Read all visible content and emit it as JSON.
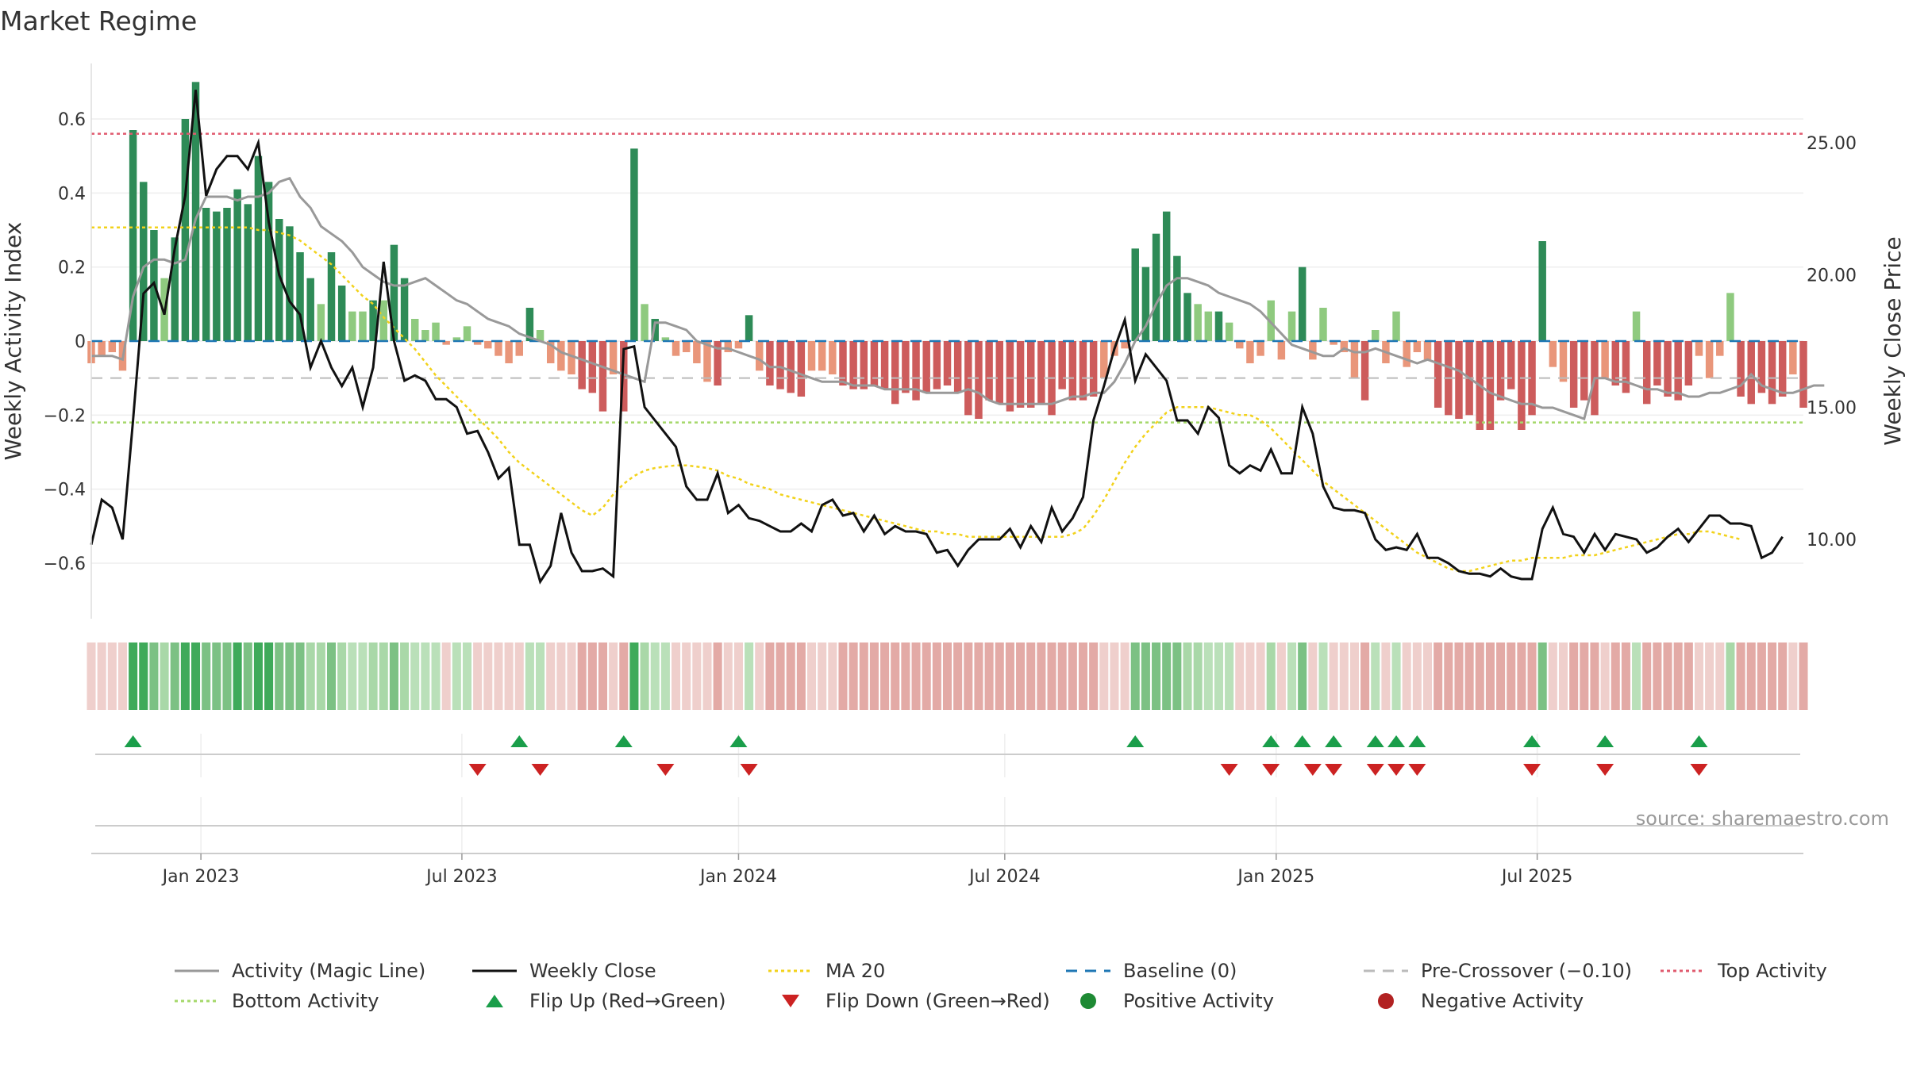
{
  "chart_data": {
    "type": "bar",
    "title": "Market Regime",
    "ylabel": "Weekly Activity Index",
    "y2label": "Weekly Close Price",
    "ylim": [
      -0.75,
      0.75
    ],
    "y2lim": [
      7.0,
      28.0
    ],
    "x_tick_labels": [
      "Jan 2023",
      "Jul 2023",
      "Jan 2024",
      "Jul 2024",
      "Jan 2025",
      "Jul 2025"
    ],
    "y_tick_labels": [
      "0.6",
      "0.4",
      "0.2",
      "0",
      "−0.2",
      "−0.4",
      "−0.6"
    ],
    "y_ticks": [
      0.6,
      0.4,
      0.2,
      0,
      -0.2,
      -0.4,
      -0.6
    ],
    "y2_tick_labels": [
      "25.00",
      "20.00",
      "15.00",
      "10.00"
    ],
    "y2_ticks": [
      25,
      20,
      15,
      10
    ],
    "reference_lines": {
      "top_activity": 0.56,
      "bottom_activity": -0.22,
      "pre_crossover": -0.1,
      "baseline": 0
    },
    "source": "source: sharemaestro.com",
    "grid": true,
    "legend_position": "bottom",
    "legend": [
      "Activity (Magic Line)",
      "Weekly Close",
      "MA 20",
      "Baseline (0)",
      "Pre-Crossover (−0.10)",
      "Top Activity",
      "Bottom Activity",
      "Flip Up (Red→Green)",
      "Flip Down (Green→Red)",
      "Positive Activity",
      "Negative Activity"
    ],
    "colors": {
      "pos_strong": "#2e8b57",
      "pos_light": "#8fca7f",
      "neg_strong": "#cd5c5c",
      "neg_light": "#e9967a",
      "close": "#111111",
      "magic": "#999999",
      "ma20": "#f2d21b",
      "baseline": "#1f77b4",
      "pre_crossover": "#bbbbbb",
      "top": "#e05a6e",
      "bottom": "#a5d86a",
      "flip_up": "#1a9e4a",
      "flip_down": "#cc2222"
    },
    "series": [
      {
        "name": "Activity (Magic Line)",
        "values": [
          -0.04,
          -0.04,
          -0.04,
          -0.05,
          0.12,
          0.2,
          0.22,
          0.22,
          0.21,
          0.22,
          0.33,
          0.39,
          0.39,
          0.39,
          0.38,
          0.39,
          0.39,
          0.4,
          0.43,
          0.44,
          0.39,
          0.36,
          0.31,
          0.29,
          0.27,
          0.24,
          0.2,
          0.18,
          0.16,
          0.15,
          0.15,
          0.16,
          0.17,
          0.15,
          0.13,
          0.11,
          0.1,
          0.08,
          0.06,
          0.05,
          0.04,
          0.02,
          0.01,
          0.0,
          -0.01,
          -0.03,
          -0.04,
          -0.05,
          -0.06,
          -0.07,
          -0.08,
          -0.09,
          -0.1,
          -0.11,
          0.05,
          0.05,
          0.04,
          0.03,
          0.0,
          -0.01,
          -0.02,
          -0.02,
          -0.03,
          -0.04,
          -0.05,
          -0.07,
          -0.07,
          -0.08,
          -0.09,
          -0.1,
          -0.11,
          -0.11,
          -0.11,
          -0.12,
          -0.12,
          -0.12,
          -0.13,
          -0.13,
          -0.13,
          -0.13,
          -0.14,
          -0.14,
          -0.14,
          -0.14,
          -0.13,
          -0.14,
          -0.16,
          -0.17,
          -0.17,
          -0.17,
          -0.17,
          -0.17,
          -0.17,
          -0.16,
          -0.15,
          -0.15,
          -0.14,
          -0.14,
          -0.11,
          -0.06,
          0.0,
          0.04,
          0.1,
          0.15,
          0.17,
          0.17,
          0.16,
          0.15,
          0.13,
          0.12,
          0.11,
          0.1,
          0.08,
          0.05,
          0.02,
          -0.01,
          -0.02,
          -0.03,
          -0.04,
          -0.04,
          -0.02,
          -0.03,
          -0.03,
          -0.02,
          -0.03,
          -0.04,
          -0.05,
          -0.06,
          -0.05,
          -0.06,
          -0.07,
          -0.08,
          -0.1,
          -0.12,
          -0.14,
          -0.15,
          -0.16,
          -0.17,
          -0.17,
          -0.18,
          -0.18,
          -0.19,
          -0.2,
          -0.21,
          -0.1,
          -0.1,
          -0.11,
          -0.11,
          -0.12,
          -0.13,
          -0.13,
          -0.14,
          -0.14,
          -0.15,
          -0.15,
          -0.14,
          -0.14,
          -0.13,
          -0.12,
          -0.09,
          -0.12,
          -0.13,
          -0.14,
          -0.14,
          -0.13,
          -0.12,
          -0.12
        ]
      },
      {
        "name": "Weekly Close",
        "values": [
          9.8,
          11.5,
          11.2,
          10.0,
          14.5,
          19.3,
          19.7,
          18.5,
          21.0,
          23.0,
          27.0,
          23.0,
          24.0,
          24.5,
          24.5,
          24.0,
          25.0,
          22.0,
          20.0,
          19.0,
          18.5,
          16.5,
          17.5,
          16.5,
          15.8,
          16.5,
          15.0,
          16.5,
          20.5,
          17.5,
          16.0,
          16.2,
          16.0,
          15.3,
          15.3,
          15.0,
          14.0,
          14.1,
          13.3,
          12.3,
          12.7,
          9.8,
          9.8,
          8.4,
          9.0,
          11.0,
          9.5,
          8.8,
          8.8,
          8.9,
          8.6,
          17.2,
          17.3,
          15.0,
          14.5,
          14.0,
          13.5,
          12.0,
          11.5,
          11.5,
          12.5,
          11.0,
          11.3,
          10.8,
          10.7,
          10.5,
          10.3,
          10.3,
          10.6,
          10.3,
          11.3,
          11.5,
          10.9,
          11.0,
          10.3,
          10.9,
          10.2,
          10.5,
          10.3,
          10.3,
          10.2,
          9.5,
          9.6,
          9.0,
          9.6,
          10.0,
          10.0,
          10.0,
          10.4,
          9.7,
          10.5,
          9.9,
          11.2,
          10.3,
          10.8,
          11.6,
          14.5,
          15.8,
          17.2,
          18.3,
          16.0,
          17.0,
          16.5,
          16.0,
          14.5,
          14.5,
          14.0,
          15.0,
          14.6,
          12.8,
          12.5,
          12.8,
          12.6,
          13.4,
          12.5,
          12.5,
          15.0,
          14.0,
          12.0,
          11.2,
          11.1,
          11.1,
          11.0,
          10.0,
          9.6,
          9.7,
          9.6,
          10.2,
          9.3,
          9.3,
          9.1,
          8.8,
          8.7,
          8.7,
          8.6,
          8.9,
          8.6,
          8.5,
          8.5,
          10.4,
          11.2,
          10.2,
          10.1,
          9.5,
          10.2,
          9.6,
          10.2,
          10.1,
          10.0,
          9.5,
          9.7,
          10.1,
          10.4,
          9.9,
          10.4,
          10.9,
          10.9,
          10.6,
          10.6,
          10.5,
          9.3,
          9.5,
          10.1
        ]
      },
      {
        "name": "MA 20",
        "values": [
          21.8,
          21.8,
          21.8,
          21.8,
          21.8,
          21.8,
          21.8,
          21.8,
          21.8,
          21.8,
          21.8,
          21.8,
          21.8,
          21.8,
          21.8,
          21.8,
          21.7,
          21.7,
          21.6,
          21.5,
          21.3,
          21.0,
          20.7,
          20.4,
          20.0,
          19.6,
          19.2,
          18.9,
          18.4,
          18.0,
          17.6,
          17.2,
          16.7,
          16.2,
          15.8,
          15.4,
          15.0,
          14.6,
          14.2,
          13.8,
          13.3,
          12.9,
          12.6,
          12.3,
          12.0,
          11.7,
          11.4,
          11.1,
          10.9,
          11.2,
          11.7,
          12.1,
          12.4,
          12.6,
          12.7,
          12.75,
          12.8,
          12.8,
          12.75,
          12.7,
          12.6,
          12.4,
          12.3,
          12.1,
          12.0,
          11.9,
          11.7,
          11.6,
          11.5,
          11.4,
          11.3,
          11.2,
          11.1,
          11.0,
          10.9,
          10.8,
          10.7,
          10.6,
          10.5,
          10.4,
          10.3,
          10.3,
          10.2,
          10.2,
          10.1,
          10.1,
          10.1,
          10.1,
          10.1,
          10.1,
          10.1,
          10.1,
          10.1,
          10.1,
          10.2,
          10.4,
          10.9,
          11.5,
          12.2,
          12.9,
          13.5,
          14.0,
          14.4,
          14.8,
          15.0,
          15.0,
          15.0,
          15.0,
          14.9,
          14.8,
          14.7,
          14.7,
          14.5,
          14.2,
          13.8,
          13.4,
          13.0,
          12.6,
          12.2,
          11.9,
          11.6,
          11.3,
          11.0,
          10.7,
          10.4,
          10.1,
          9.8,
          9.5,
          9.3,
          9.1,
          8.9,
          8.8,
          8.8,
          8.9,
          9.0,
          9.1,
          9.2,
          9.2,
          9.3,
          9.3,
          9.3,
          9.3,
          9.4,
          9.4,
          9.4,
          9.5,
          9.6,
          9.7,
          9.8,
          9.9,
          10.0,
          10.1,
          10.2,
          10.2,
          10.3,
          10.3,
          10.2,
          10.1,
          10.0
        ]
      },
      {
        "name": "Weekly Activity Index",
        "values": [
          -0.06,
          -0.04,
          -0.03,
          -0.08,
          0.57,
          0.43,
          0.3,
          0.17,
          0.28,
          0.6,
          0.7,
          0.36,
          0.35,
          0.36,
          0.41,
          0.37,
          0.5,
          0.43,
          0.33,
          0.31,
          0.24,
          0.17,
          0.1,
          0.24,
          0.15,
          0.08,
          0.08,
          0.11,
          0.11,
          0.26,
          0.17,
          0.06,
          0.03,
          0.05,
          -0.01,
          0.01,
          0.04,
          -0.01,
          -0.02,
          -0.04,
          -0.06,
          -0.04,
          0.09,
          0.03,
          -0.06,
          -0.08,
          -0.09,
          -0.13,
          -0.14,
          -0.19,
          -0.09,
          -0.19,
          0.52,
          0.1,
          0.06,
          0.01,
          -0.04,
          -0.03,
          -0.06,
          -0.11,
          -0.12,
          -0.03,
          -0.02,
          0.07,
          -0.08,
          -0.12,
          -0.13,
          -0.14,
          -0.15,
          -0.08,
          -0.08,
          -0.09,
          -0.12,
          -0.13,
          -0.13,
          -0.12,
          -0.13,
          -0.17,
          -0.14,
          -0.16,
          -0.14,
          -0.13,
          -0.12,
          -0.14,
          -0.2,
          -0.21,
          -0.16,
          -0.17,
          -0.19,
          -0.18,
          -0.18,
          -0.17,
          -0.2,
          -0.13,
          -0.16,
          -0.16,
          -0.15,
          -0.1,
          -0.04,
          -0.02,
          0.25,
          0.2,
          0.29,
          0.35,
          0.23,
          0.13,
          0.1,
          0.08,
          0.08,
          0.05,
          -0.02,
          -0.06,
          -0.04,
          0.11,
          -0.05,
          0.08,
          0.2,
          -0.05,
          0.09,
          -0.01,
          -0.03,
          -0.1,
          -0.16,
          0.03,
          -0.06,
          0.08,
          -0.07,
          -0.03,
          -0.05,
          -0.18,
          -0.2,
          -0.21,
          -0.2,
          -0.24,
          -0.24,
          -0.16,
          -0.13,
          -0.24,
          -0.2,
          0.27,
          -0.07,
          -0.11,
          -0.18,
          -0.16,
          -0.2,
          -0.1,
          -0.12,
          -0.14,
          0.08,
          -0.17,
          -0.12,
          -0.15,
          -0.16,
          -0.12,
          -0.04,
          -0.1,
          -0.04,
          0.13,
          -0.15,
          -0.17,
          -0.14,
          -0.17,
          -0.15,
          -0.09,
          -0.18
        ]
      }
    ],
    "flip_up_indices": [
      4,
      41,
      51,
      62,
      100,
      113,
      116,
      119,
      123,
      125,
      127,
      138,
      145,
      154
    ],
    "flip_down_indices": [
      37,
      43,
      55,
      63,
      109,
      113,
      117,
      119,
      123,
      125,
      127,
      138,
      145,
      154
    ]
  }
}
